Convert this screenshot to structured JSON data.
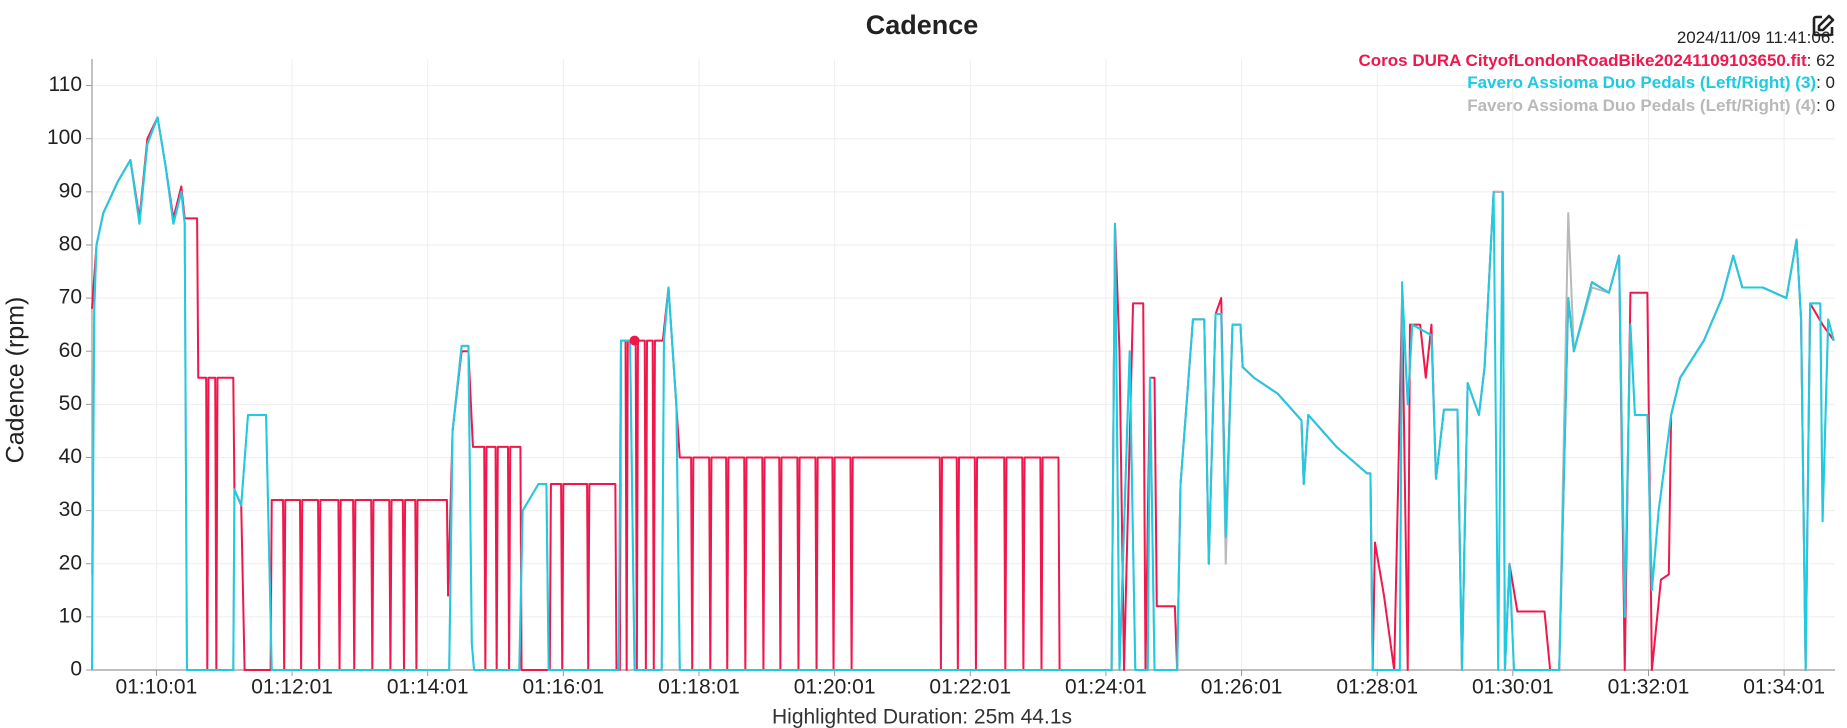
{
  "chart_data": {
    "type": "line",
    "title": "Cadence",
    "y_label": "Cadence (rpm)",
    "footer": "Highlighted Duration: 25m 44.1s",
    "xlim": [
      "01:09:04",
      "01:34:46"
    ],
    "xticks": [
      "01:10:01",
      "01:12:01",
      "01:14:01",
      "01:16:01",
      "01:18:01",
      "01:20:01",
      "01:22:01",
      "01:24:01",
      "01:26:01",
      "01:28:01",
      "01:30:01",
      "01:32:01",
      "01:34:01"
    ],
    "ylim": [
      0,
      115
    ],
    "yticks": [
      0,
      10,
      20,
      30,
      40,
      50,
      60,
      70,
      80,
      90,
      100,
      110
    ],
    "grid": true,
    "readout": {
      "time": "2024/11/09 11:41:06:",
      "x": "01:17:04",
      "values": [
        62,
        0,
        0
      ]
    },
    "series": [
      {
        "name": "Coros DURA CityofLondonRoadBike20241109103650.fit",
        "color": "#f0174d",
        "x": [
          "01:09:04",
          "01:09:08",
          "01:09:14",
          "01:09:27",
          "01:09:38",
          "01:09:46",
          "01:09:53",
          "01:10:02",
          "01:10:09",
          "01:10:16",
          "01:10:23",
          "01:10:26",
          "01:10:37",
          "01:10:38",
          "01:10:45",
          "01:10:46",
          "01:10:47",
          "01:10:53",
          "01:10:54",
          "01:10:55",
          "01:11:09",
          "01:11:10",
          "01:11:16",
          "01:11:19",
          "01:11:42",
          "01:11:43",
          "01:11:53",
          "01:11:54",
          "01:11:55",
          "01:12:08",
          "01:12:09",
          "01:12:10",
          "01:12:24",
          "01:12:25",
          "01:12:26",
          "01:12:42",
          "01:12:43",
          "01:12:44",
          "01:12:55",
          "01:12:56",
          "01:12:57",
          "01:13:11",
          "01:13:12",
          "01:13:13",
          "01:13:27",
          "01:13:28",
          "01:13:29",
          "01:13:39",
          "01:13:40",
          "01:13:41",
          "01:13:50",
          "01:13:51",
          "01:13:52",
          "01:14:18",
          "01:14:19",
          "01:14:23",
          "01:14:31",
          "01:14:37",
          "01:14:41",
          "01:14:51",
          "01:14:52",
          "01:14:53",
          "01:15:01",
          "01:15:02",
          "01:15:03",
          "01:15:12",
          "01:15:13",
          "01:15:14",
          "01:15:23",
          "01:15:24",
          "01:15:49",
          "01:15:50",
          "01:15:59",
          "01:16:00",
          "01:16:01",
          "01:16:22",
          "01:16:23",
          "01:16:24",
          "01:16:47",
          "01:16:48",
          "01:16:51",
          "01:16:52",
          "01:16:56",
          "01:16:57",
          "01:16:58",
          "01:17:05",
          "01:17:06",
          "01:17:07",
          "01:17:13",
          "01:17:14",
          "01:17:15",
          "01:17:20",
          "01:17:21",
          "01:17:22",
          "01:17:29",
          "01:17:34",
          "01:17:44",
          "01:17:54",
          "01:17:55",
          "01:17:56",
          "01:18:10",
          "01:18:11",
          "01:18:12",
          "01:18:25",
          "01:18:26",
          "01:18:27",
          "01:18:41",
          "01:18:42",
          "01:18:43",
          "01:18:57",
          "01:18:58",
          "01:18:59",
          "01:19:12",
          "01:19:13",
          "01:19:14",
          "01:19:28",
          "01:19:29",
          "01:19:30",
          "01:19:44",
          "01:19:45",
          "01:19:46",
          "01:19:59",
          "01:20:00",
          "01:20:01",
          "01:20:15",
          "01:20:16",
          "01:20:17",
          "01:21:34",
          "01:21:35",
          "01:21:36",
          "01:21:49",
          "01:21:50",
          "01:21:51",
          "01:22:05",
          "01:22:06",
          "01:22:07",
          "01:22:31",
          "01:22:32",
          "01:22:33",
          "01:22:47",
          "01:22:48",
          "01:22:49",
          "01:23:03",
          "01:23:04",
          "01:23:05",
          "01:23:19",
          "01:23:20",
          "01:24:06",
          "01:24:09",
          "01:24:13",
          "01:24:17",
          "01:24:25",
          "01:24:34",
          "01:24:36",
          "01:24:40",
          "01:24:44",
          "01:24:46",
          "01:25:02",
          "01:25:04",
          "01:25:07",
          "01:25:18",
          "01:25:28",
          "01:25:32",
          "01:25:38",
          "01:25:43",
          "01:25:47",
          "01:25:53",
          "01:26:00",
          "01:26:02",
          "01:26:12",
          "01:26:33",
          "01:26:54",
          "01:26:56",
          "01:27:00",
          "01:27:25",
          "01:27:52",
          "01:27:55",
          "01:27:57",
          "01:27:59",
          "01:28:07",
          "01:28:16",
          "01:28:23",
          "01:28:28",
          "01:28:30",
          "01:28:39",
          "01:28:44",
          "01:28:49",
          "01:28:53",
          "01:29:00",
          "01:29:12",
          "01:29:16",
          "01:29:21",
          "01:29:31",
          "01:29:36",
          "01:29:44",
          "01:29:52",
          "01:29:54",
          "01:29:58",
          "01:30:05",
          "01:30:29",
          "01:30:34",
          "01:30:42",
          "01:30:50",
          "01:30:55",
          "01:31:11",
          "01:31:26",
          "01:31:35",
          "01:31:40",
          "01:31:45",
          "01:32:00",
          "01:32:04",
          "01:32:12",
          "01:32:19",
          "01:32:21",
          "01:32:29",
          "01:32:50",
          "01:33:06",
          "01:33:16",
          "01:33:24",
          "01:33:42",
          "01:34:03",
          "01:34:12",
          "01:34:16",
          "01:34:20",
          "01:34:24",
          "01:34:35",
          "01:34:45"
        ],
        "values": [
          68,
          80,
          86,
          92,
          96,
          85,
          100,
          104,
          95,
          85,
          91,
          85,
          85,
          55,
          55,
          0,
          55,
          55,
          0,
          55,
          55,
          34,
          31,
          0,
          0,
          32,
          32,
          0,
          32,
          32,
          0,
          32,
          32,
          0,
          32,
          32,
          0,
          32,
          32,
          0,
          32,
          32,
          0,
          32,
          32,
          0,
          32,
          32,
          0,
          32,
          32,
          0,
          32,
          32,
          14,
          45,
          60,
          60,
          42,
          42,
          0,
          42,
          42,
          0,
          42,
          42,
          0,
          42,
          42,
          0,
          0,
          35,
          35,
          0,
          35,
          35,
          0,
          35,
          35,
          0,
          0,
          62,
          62,
          0,
          62,
          62,
          0,
          62,
          62,
          0,
          62,
          62,
          0,
          62,
          62,
          72,
          40,
          40,
          0,
          40,
          40,
          0,
          40,
          40,
          0,
          40,
          40,
          0,
          40,
          40,
          0,
          40,
          40,
          0,
          40,
          40,
          0,
          40,
          40,
          0,
          40,
          40,
          0,
          40,
          40,
          0,
          40,
          40,
          0,
          40,
          40,
          0,
          40,
          40,
          0,
          40,
          40,
          0,
          40,
          40,
          0,
          40,
          40,
          0,
          40,
          40,
          0,
          0,
          84,
          60,
          0,
          69,
          69,
          0,
          55,
          55,
          12,
          12,
          0,
          35,
          66,
          66,
          20,
          67,
          70,
          25,
          65,
          65,
          57,
          55,
          52,
          47,
          35,
          48,
          42,
          37,
          37,
          0,
          24,
          14,
          0,
          70,
          0,
          65,
          65,
          55,
          65,
          36,
          49,
          49,
          0,
          54,
          48,
          57,
          90,
          90,
          0,
          20,
          11,
          11,
          0,
          0,
          70,
          60,
          73,
          71,
          78,
          0,
          71,
          71,
          0,
          17,
          18,
          48,
          55,
          62,
          70,
          78,
          72,
          72,
          70,
          81,
          66,
          0,
          69,
          65,
          62
        ]
      },
      {
        "name": "Favero Assioma Duo Pedals (Left/Right) (4)",
        "color": "#b9b9b9",
        "x": [
          "01:09:04",
          "01:09:06",
          "01:09:08",
          "01:09:14",
          "01:09:27",
          "01:09:38",
          "01:09:46",
          "01:09:53",
          "01:10:02",
          "01:10:09",
          "01:10:16",
          "01:10:23",
          "01:10:26",
          "01:10:28",
          "01:11:09",
          "01:11:10",
          "01:11:16",
          "01:11:22",
          "01:11:38",
          "01:11:43",
          "01:14:20",
          "01:14:23",
          "01:14:31",
          "01:14:37",
          "01:14:40",
          "01:14:42",
          "01:15:22",
          "01:15:25",
          "01:15:39",
          "01:15:46",
          "01:15:48",
          "01:16:50",
          "01:16:52",
          "01:17:00",
          "01:17:04",
          "01:17:28",
          "01:17:30",
          "01:17:34",
          "01:17:41",
          "01:17:44",
          "01:24:06",
          "01:24:09",
          "01:24:13",
          "01:24:22",
          "01:24:27",
          "01:24:38",
          "01:24:40",
          "01:24:44",
          "01:25:04",
          "01:25:07",
          "01:25:18",
          "01:25:28",
          "01:25:32",
          "01:25:38",
          "01:25:43",
          "01:25:47",
          "01:25:53",
          "01:26:00",
          "01:26:02",
          "01:26:12",
          "01:26:33",
          "01:26:54",
          "01:26:56",
          "01:27:00",
          "01:27:25",
          "01:27:52",
          "01:27:55",
          "01:27:57",
          "01:28:21",
          "01:28:23",
          "01:28:28",
          "01:28:32",
          "01:28:49",
          "01:28:53",
          "01:29:00",
          "01:29:12",
          "01:29:16",
          "01:29:21",
          "01:29:31",
          "01:29:36",
          "01:29:44",
          "01:29:48",
          "01:29:52",
          "01:29:54",
          "01:29:58",
          "01:30:02",
          "01:30:42",
          "01:30:50",
          "01:30:55",
          "01:31:11",
          "01:31:26",
          "01:31:35",
          "01:31:40",
          "01:31:45",
          "01:31:49",
          "01:32:00",
          "01:32:04",
          "01:32:10",
          "01:32:21",
          "01:32:29",
          "01:32:50",
          "01:33:06",
          "01:33:16",
          "01:33:24",
          "01:33:42",
          "01:34:03",
          "01:34:12",
          "01:34:16",
          "01:34:20",
          "01:34:24",
          "01:34:33",
          "01:34:35",
          "01:34:40",
          "01:34:45"
        ],
        "values": [
          18,
          68,
          80,
          86,
          92,
          96,
          84,
          99,
          104,
          95,
          84,
          90,
          84,
          0,
          0,
          34,
          31,
          48,
          48,
          0,
          0,
          45,
          61,
          61,
          5,
          0,
          0,
          30,
          35,
          35,
          0,
          0,
          62,
          62,
          0,
          0,
          62,
          72,
          50,
          0,
          0,
          84,
          0,
          60,
          0,
          0,
          55,
          0,
          0,
          35,
          66,
          66,
          20,
          67,
          67,
          20,
          65,
          65,
          57,
          55,
          52,
          47,
          35,
          48,
          42,
          37,
          37,
          0,
          0,
          70,
          50,
          65,
          63,
          36,
          49,
          49,
          0,
          54,
          48,
          57,
          90,
          90,
          90,
          0,
          20,
          0,
          0,
          86,
          60,
          72,
          71,
          78,
          10,
          65,
          48,
          48,
          15,
          30,
          48,
          55,
          62,
          70,
          78,
          72,
          72,
          70,
          81,
          66,
          0,
          69,
          69,
          28,
          66,
          62
        ]
      },
      {
        "name": "Favero Assioma Duo Pedals (Left/Right) (3)",
        "color": "#1ecbe1",
        "x": [
          "01:09:04",
          "01:09:06",
          "01:09:08",
          "01:09:14",
          "01:09:27",
          "01:09:38",
          "01:09:46",
          "01:09:53",
          "01:10:02",
          "01:10:09",
          "01:10:16",
          "01:10:23",
          "01:10:26",
          "01:10:28",
          "01:11:09",
          "01:11:10",
          "01:11:16",
          "01:11:22",
          "01:11:38",
          "01:11:43",
          "01:14:20",
          "01:14:23",
          "01:14:31",
          "01:14:37",
          "01:14:40",
          "01:14:42",
          "01:15:22",
          "01:15:25",
          "01:15:39",
          "01:15:46",
          "01:15:48",
          "01:16:50",
          "01:16:52",
          "01:17:00",
          "01:17:04",
          "01:17:28",
          "01:17:30",
          "01:17:34",
          "01:17:41",
          "01:17:44",
          "01:24:06",
          "01:24:09",
          "01:24:13",
          "01:24:22",
          "01:24:27",
          "01:24:38",
          "01:24:40",
          "01:24:44",
          "01:25:04",
          "01:25:07",
          "01:25:18",
          "01:25:28",
          "01:25:32",
          "01:25:38",
          "01:25:43",
          "01:25:47",
          "01:25:53",
          "01:26:00",
          "01:26:02",
          "01:26:12",
          "01:26:33",
          "01:26:54",
          "01:26:56",
          "01:27:00",
          "01:27:25",
          "01:27:52",
          "01:27:55",
          "01:27:57",
          "01:28:21",
          "01:28:23",
          "01:28:28",
          "01:28:32",
          "01:28:49",
          "01:28:53",
          "01:29:00",
          "01:29:12",
          "01:29:16",
          "01:29:21",
          "01:29:31",
          "01:29:36",
          "01:29:44",
          "01:29:48",
          "01:29:52",
          "01:29:54",
          "01:29:58",
          "01:30:02",
          "01:30:42",
          "01:30:50",
          "01:30:55",
          "01:31:11",
          "01:31:26",
          "01:31:35",
          "01:31:40",
          "01:31:45",
          "01:31:49",
          "01:32:00",
          "01:32:04",
          "01:32:10",
          "01:32:21",
          "01:32:29",
          "01:32:50",
          "01:33:06",
          "01:33:16",
          "01:33:24",
          "01:33:42",
          "01:34:03",
          "01:34:12",
          "01:34:16",
          "01:34:20",
          "01:34:24",
          "01:34:33",
          "01:34:35",
          "01:34:40",
          "01:34:45"
        ],
        "values": [
          0,
          68,
          80,
          86,
          92,
          96,
          84,
          99,
          104,
          95,
          84,
          90,
          84,
          0,
          0,
          34,
          31,
          48,
          48,
          0,
          0,
          45,
          61,
          61,
          5,
          0,
          0,
          30,
          35,
          35,
          0,
          0,
          62,
          62,
          0,
          0,
          62,
          72,
          50,
          0,
          0,
          84,
          0,
          60,
          0,
          0,
          55,
          0,
          0,
          35,
          66,
          66,
          20,
          67,
          67,
          25,
          65,
          65,
          57,
          55,
          52,
          47,
          35,
          48,
          42,
          37,
          37,
          0,
          0,
          73,
          50,
          65,
          63,
          36,
          49,
          49,
          0,
          54,
          48,
          57,
          90,
          0,
          90,
          0,
          20,
          0,
          0,
          70,
          60,
          73,
          71,
          78,
          10,
          65,
          48,
          48,
          15,
          30,
          48,
          55,
          62,
          70,
          78,
          72,
          72,
          70,
          81,
          66,
          0,
          69,
          69,
          28,
          66,
          62
        ]
      }
    ]
  }
}
